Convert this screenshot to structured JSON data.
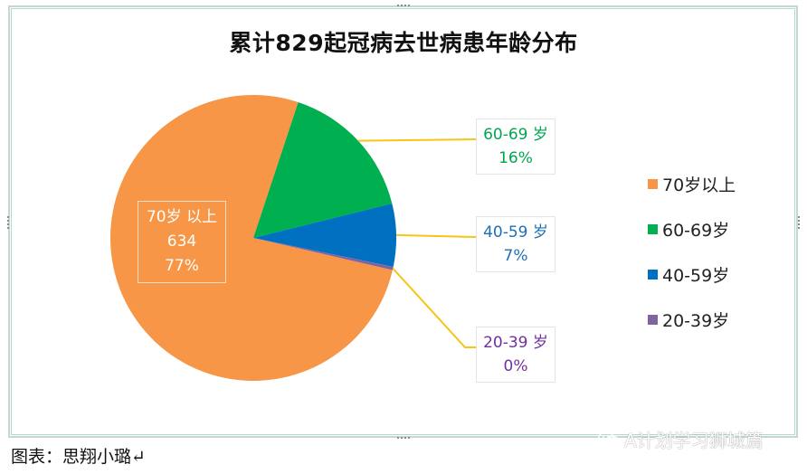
{
  "chart_data": {
    "type": "pie",
    "title": "累计829起冠病去世病患年龄分布",
    "total": 829,
    "categories": [
      "70岁以上",
      "60-69岁",
      "40-59岁",
      "20-39岁"
    ],
    "values": [
      634,
      133,
      59,
      3
    ],
    "percent_labels": [
      "77%",
      "16%",
      "7%",
      "0%"
    ],
    "colors": [
      "#F79646",
      "#00B050",
      "#0070C0",
      "#8064A2"
    ],
    "start_angle_deg": 103,
    "legend_position": "right",
    "data_labels": [
      {
        "line1": "70岁 以上",
        "line2": "634",
        "line3": "77%",
        "position": "inside"
      },
      {
        "line1": "60-69 岁",
        "line2": "16%",
        "position": "outside",
        "color": "#00A550"
      },
      {
        "line1": "40-59 岁",
        "line2": "7%",
        "position": "outside",
        "color": "#1F6FB5"
      },
      {
        "line1": "20-39 岁",
        "line2": "0%",
        "position": "outside",
        "color": "#7030A0"
      }
    ],
    "leader_line_color": "#F5C518"
  },
  "legend": {
    "items": [
      {
        "label": "70岁以上",
        "color": "#F79646"
      },
      {
        "label": "60-69岁",
        "color": "#00B050"
      },
      {
        "label": "40-59岁",
        "color": "#0070C0"
      },
      {
        "label": "20-39岁",
        "color": "#8064A2"
      }
    ]
  },
  "caption": "图表：思翔小璐↵",
  "watermark": "A计划学习狮城篇"
}
